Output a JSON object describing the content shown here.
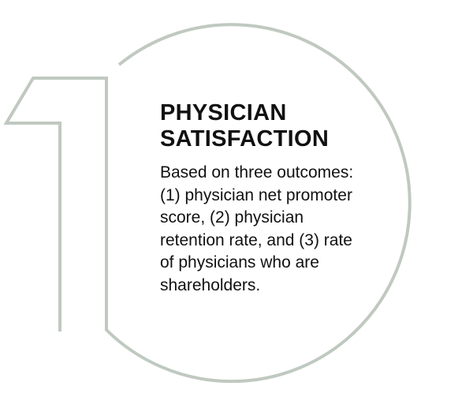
{
  "title": "PHYSICIAN\nSATISFACTION",
  "description": "Based on three outcomes:\n(1) physician net promoter\nscore, (2) physician\nretention rate, and (3) rate\nof physicians who are\nshareholders.",
  "colors": {
    "outline": "#c0c9c0",
    "text": "#111111",
    "background": "#ffffff"
  }
}
